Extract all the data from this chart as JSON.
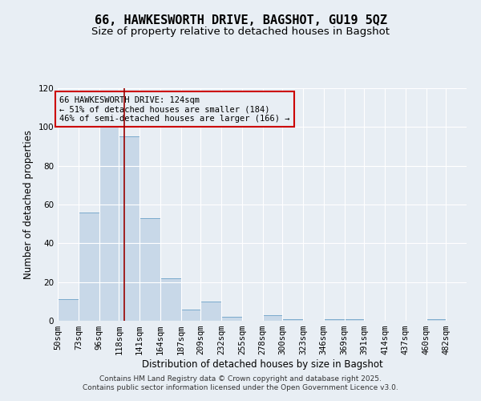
{
  "title": "66, HAWKESWORTH DRIVE, BAGSHOT, GU19 5QZ",
  "subtitle": "Size of property relative to detached houses in Bagshot",
  "xlabel": "Distribution of detached houses by size in Bagshot",
  "ylabel": "Number of detached properties",
  "bar_color": "#c8d8e8",
  "bar_edge_color": "#7aaacc",
  "background_color": "#e8eef4",
  "grid_color": "white",
  "bin_edges": [
    50,
    73,
    96,
    118,
    141,
    164,
    187,
    209,
    232,
    255,
    278,
    300,
    323,
    346,
    369,
    391,
    414,
    437,
    460,
    482,
    505
  ],
  "bar_heights": [
    11,
    56,
    101,
    95,
    53,
    22,
    6,
    10,
    2,
    0,
    3,
    1,
    0,
    1,
    1,
    0,
    0,
    0,
    1,
    0
  ],
  "property_size": 124,
  "annotation_text": "66 HAWKESWORTH DRIVE: 124sqm\n← 51% of detached houses are smaller (184)\n46% of semi-detached houses are larger (166) →",
  "annotation_box_color": "#cc0000",
  "vline_color": "#990000",
  "ylim": [
    0,
    120
  ],
  "yticks": [
    0,
    20,
    40,
    60,
    80,
    100,
    120
  ],
  "footer_text": "Contains HM Land Registry data © Crown copyright and database right 2025.\nContains public sector information licensed under the Open Government Licence v3.0.",
  "title_fontsize": 11,
  "subtitle_fontsize": 9.5,
  "axis_label_fontsize": 8.5,
  "tick_fontsize": 7.5,
  "annotation_fontsize": 7.5,
  "footer_fontsize": 6.5
}
